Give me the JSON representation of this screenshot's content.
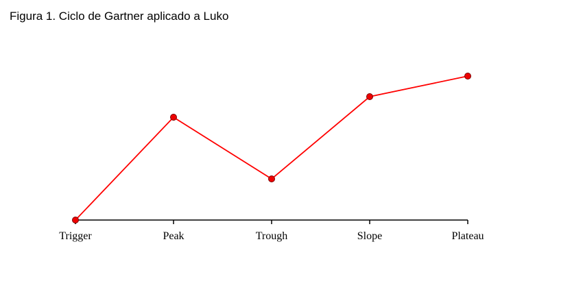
{
  "chart_data": {
    "type": "line",
    "title": "Figura 1. Ciclo de Gartner aplicado a Luko",
    "xlabel": "",
    "ylabel": "",
    "categories": [
      "Trigger",
      "Peak",
      "Trough",
      "Slope",
      "Plateau"
    ],
    "series": [
      {
        "values": [
          0,
          5,
          2,
          6,
          7
        ]
      }
    ],
    "ylim": [
      0,
      7
    ],
    "grid": false,
    "legend": "none",
    "colors": {
      "line": "#ff0000",
      "marker_fill": "#ee0000",
      "marker_stroke": "#7a0000",
      "axis": "#000000"
    }
  }
}
